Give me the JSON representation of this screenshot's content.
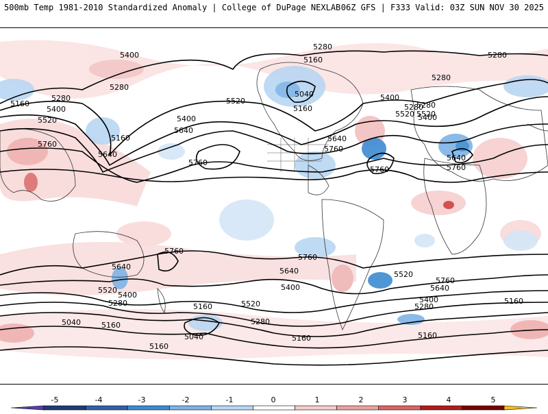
{
  "header": {
    "left": "500mb Temp 1981-2010 Standardized Anomaly | College of DuPage NEXLAB",
    "right": "06Z GFS | F333 Valid: 03Z SUN NOV 30 2025"
  },
  "contour_labels": {
    "c5400_nw": "5400",
    "c5280_nw": "5280",
    "c5160_w": "5160",
    "c5280_w": "5280",
    "c5400_w": "5400",
    "c5520_w": "5520",
    "c5760_w": "5760",
    "c5160_japan": "5160",
    "c5640_japan": "5640",
    "c5400_pac": "5400",
    "c5640_pac": "5640",
    "c5760_pac": "5760",
    "c5520_ak": "5520",
    "c5280_top": "5280",
    "c5160_can": "5160",
    "c5040_can": "5040",
    "c5160_can2": "5160",
    "c5640_us": "5640",
    "c5760_us": "5760",
    "c5760_atl": "5760",
    "c5400_atl": "5400",
    "c5280_atl": "5280",
    "c5520_atl": "5520",
    "c5280_ne": "5280",
    "c5280_ne2": "5280",
    "c5280_eu": "5280",
    "c5400_eu": "5400",
    "c5520_eu": "5520",
    "c5640_eu": "5640",
    "c5760_eu": "5760",
    "c5760_aus": "5760",
    "c5640_sw": "5640",
    "c5520_sw": "5520",
    "c5400_sw": "5400",
    "c5280_sw": "5280",
    "c5040_sw": "5040",
    "c5160_sw": "5160",
    "c5160_spac": "5160",
    "c5040_spac": "5040",
    "c5160_spac2": "5160",
    "c5280_spac": "5280",
    "c5520_spac": "5520",
    "c5400_spac": "5400",
    "c5640_spac": "5640",
    "c5760_spac": "5760",
    "c5160_sam": "5160",
    "c5280_sam": "5280",
    "c5400_sam": "5400",
    "c5520_sam": "5520",
    "c5640_sam": "5640",
    "c5760_sam": "5760",
    "c5160_ind": "5160",
    "c5160_sind": "5160"
  },
  "colorbar": {
    "ticks": [
      "-5",
      "-4",
      "-3",
      "-2",
      "-1",
      "0",
      "1",
      "2",
      "3",
      "4",
      "5"
    ],
    "colors": [
      "#5a3fa6",
      "#1f3a78",
      "#2f62a6",
      "#3d8bd1",
      "#7db3e6",
      "#b9d6f2",
      "#ffffff",
      "#f6cccc",
      "#eaa2a2",
      "#d96565",
      "#b01c1c",
      "#7a0000",
      "#f0c020"
    ]
  }
}
